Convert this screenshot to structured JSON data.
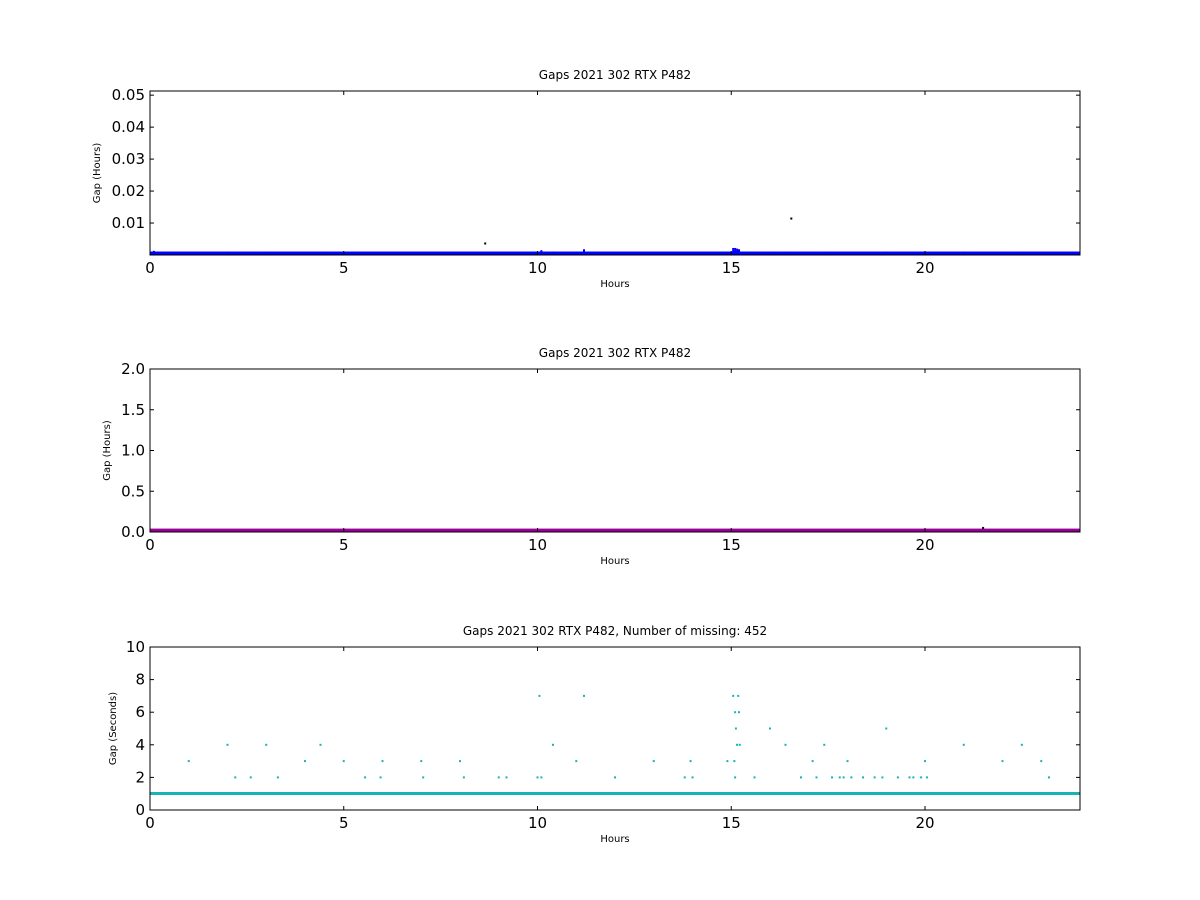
{
  "chart_data": [
    {
      "type": "scatter",
      "title": "Gaps 2021 302 RTX  P482",
      "xlabel": "Hours",
      "ylabel": "Gap (Hours)",
      "xlim": [
        0,
        24
      ],
      "ylim": [
        0,
        0.0513
      ],
      "xticks": [
        "0",
        "5",
        "10",
        "15",
        "20"
      ],
      "xtick_values": [
        0,
        5,
        10,
        15,
        20
      ],
      "yticks": [
        "0.01",
        "0.02",
        "0.03",
        "0.04",
        "0.05"
      ],
      "ytick_values": [
        0.01,
        0.02,
        0.03,
        0.04,
        0.05
      ],
      "color": "#0000ff",
      "baseline_band": [
        0.00015,
        0.0005
      ],
      "spikes": [
        [
          0.1,
          0.0013
        ],
        [
          1.0,
          0.0009
        ],
        [
          2.0,
          0.0011
        ],
        [
          3.0,
          0.0011
        ],
        [
          4.0,
          0.0009
        ],
        [
          4.4,
          0.0011
        ],
        [
          5.0,
          0.0008
        ],
        [
          6.0,
          0.0008
        ],
        [
          7.0,
          0.0008
        ],
        [
          8.0,
          0.0008
        ],
        [
          10.0,
          0.0011
        ],
        [
          10.1,
          0.0015
        ],
        [
          10.4,
          0.0011
        ],
        [
          11.0,
          0.0011
        ],
        [
          11.2,
          0.0018
        ],
        [
          13.0,
          0.0008
        ],
        [
          14.0,
          0.0008
        ],
        [
          14.9,
          0.0009
        ],
        [
          15.05,
          0.0022
        ],
        [
          15.1,
          0.0022
        ],
        [
          15.15,
          0.002
        ],
        [
          15.2,
          0.0018
        ],
        [
          16.0,
          0.0011
        ],
        [
          16.5,
          0.0011
        ],
        [
          17.0,
          0.0009
        ],
        [
          17.4,
          0.0011
        ],
        [
          18.0,
          0.0008
        ],
        [
          19.0,
          0.0011
        ],
        [
          20.0,
          0.0008
        ],
        [
          21.0,
          0.0011
        ],
        [
          21.5,
          0.0008
        ],
        [
          22.0,
          0.0008
        ],
        [
          22.5,
          0.0011
        ],
        [
          23.0,
          0.0009
        ]
      ],
      "outliers": [
        [
          8.65,
          0.0036
        ],
        [
          16.55,
          0.0114
        ]
      ]
    },
    {
      "type": "scatter",
      "title": "Gaps 2021 302 RTX  P482",
      "xlabel": "Hours",
      "ylabel": "Gap (Hours)",
      "xlim": [
        0,
        24
      ],
      "ylim": [
        0,
        2.0
      ],
      "xticks": [
        "0",
        "5",
        "10",
        "15",
        "20"
      ],
      "xtick_values": [
        0,
        5,
        10,
        15,
        20
      ],
      "yticks": [
        "0.0",
        "0.5",
        "1.0",
        "1.5",
        "2.0"
      ],
      "ytick_values": [
        0,
        0.5,
        1.0,
        1.5,
        2.0
      ],
      "color": "#990099",
      "baseline_band": [
        0.005,
        0.03
      ],
      "spikes": [],
      "outliers": [
        [
          21.5,
          0.05
        ]
      ]
    },
    {
      "type": "scatter",
      "title": "Gaps 2021 302 RTX  P482, Number of missing: 452",
      "xlabel": "Hours",
      "ylabel": "Gap (Seconds)",
      "xlim": [
        0,
        24
      ],
      "ylim": [
        0,
        10
      ],
      "xticks": [
        "0",
        "5",
        "10",
        "15",
        "20"
      ],
      "xtick_values": [
        0,
        5,
        10,
        15,
        20
      ],
      "yticks": [
        "0",
        "2",
        "4",
        "6",
        "8",
        "10"
      ],
      "ytick_values": [
        0,
        2,
        4,
        6,
        8,
        10
      ],
      "color": "#1ab3b3",
      "baseline_band": [
        0.92,
        1.08
      ],
      "spikes": [],
      "outliers": [
        [
          1.0,
          3
        ],
        [
          2.0,
          4
        ],
        [
          2.2,
          2
        ],
        [
          2.6,
          2
        ],
        [
          3.0,
          4
        ],
        [
          3.3,
          2
        ],
        [
          4.0,
          3
        ],
        [
          4.4,
          4
        ],
        [
          5.0,
          3
        ],
        [
          5.55,
          2
        ],
        [
          5.95,
          2
        ],
        [
          6.0,
          3
        ],
        [
          7.0,
          3
        ],
        [
          7.05,
          2
        ],
        [
          8.0,
          3
        ],
        [
          8.1,
          2
        ],
        [
          9.0,
          2
        ],
        [
          9.2,
          2
        ],
        [
          10.0,
          2
        ],
        [
          10.05,
          7
        ],
        [
          10.1,
          2
        ],
        [
          10.4,
          4
        ],
        [
          11.0,
          3
        ],
        [
          11.2,
          7
        ],
        [
          12.0,
          2
        ],
        [
          13.0,
          3
        ],
        [
          13.8,
          2
        ],
        [
          13.95,
          3
        ],
        [
          14.0,
          2
        ],
        [
          14.9,
          3
        ],
        [
          15.05,
          7
        ],
        [
          15.1,
          6
        ],
        [
          15.12,
          5
        ],
        [
          15.15,
          4
        ],
        [
          15.08,
          3
        ],
        [
          15.1,
          2
        ],
        [
          15.18,
          7
        ],
        [
          15.2,
          6
        ],
        [
          15.22,
          4
        ],
        [
          15.6,
          2
        ],
        [
          16.0,
          5
        ],
        [
          16.4,
          4
        ],
        [
          16.8,
          2
        ],
        [
          17.1,
          3
        ],
        [
          17.2,
          2
        ],
        [
          17.4,
          4
        ],
        [
          17.6,
          2
        ],
        [
          17.8,
          2
        ],
        [
          17.9,
          2
        ],
        [
          18.0,
          3
        ],
        [
          18.1,
          2
        ],
        [
          18.4,
          2
        ],
        [
          18.7,
          2
        ],
        [
          18.9,
          2
        ],
        [
          19.0,
          5
        ],
        [
          19.3,
          2
        ],
        [
          19.6,
          2
        ],
        [
          19.7,
          2
        ],
        [
          19.9,
          2
        ],
        [
          20.0,
          3
        ],
        [
          20.05,
          2
        ],
        [
          21.0,
          4
        ],
        [
          21.5,
          1
        ],
        [
          22.0,
          3
        ],
        [
          22.5,
          4
        ],
        [
          23.0,
          3
        ],
        [
          23.2,
          2
        ]
      ]
    }
  ]
}
